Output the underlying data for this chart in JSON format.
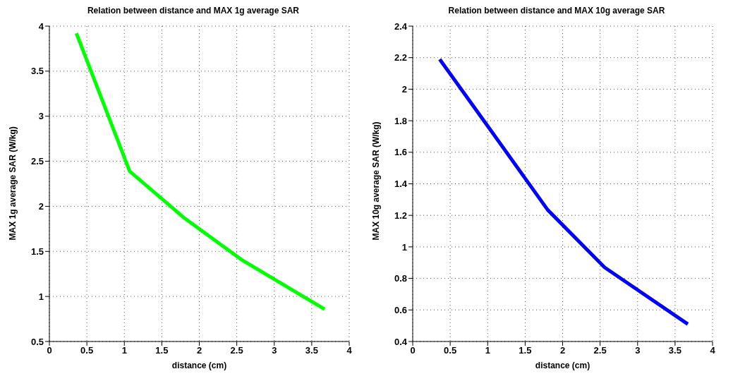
{
  "chart_data": [
    {
      "type": "line",
      "title": "Relation between distance and MAX 1g average SAR",
      "xlabel": "distance (cm)",
      "ylabel": "MAX 1g average SAR (W/kg)",
      "x": [
        0.36,
        1.07,
        1.8,
        2.56,
        3.67
      ],
      "series": [
        {
          "color": "#00ff00",
          "values": [
            3.92,
            2.39,
            1.87,
            1.41,
            0.86
          ]
        }
      ],
      "xlim": [
        0,
        4
      ],
      "ylim": [
        0.5,
        4
      ],
      "xticks": [
        0,
        0.5,
        1,
        1.5,
        2,
        2.5,
        3,
        3.5,
        4
      ],
      "yticks": [
        0.5,
        1,
        1.5,
        2,
        2.5,
        3,
        3.5,
        4
      ],
      "grid": true
    },
    {
      "type": "line",
      "title": "Relation between distance and MAX 10g average SAR",
      "xlabel": "distance (cm)",
      "ylabel": "MAX 10g average SAR (W/kg)",
      "x": [
        0.36,
        1.07,
        1.8,
        2.56,
        3.67
      ],
      "series": [
        {
          "color": "#0000ff",
          "values": [
            2.19,
            1.72,
            1.235,
            0.87,
            0.51
          ]
        }
      ],
      "xlim": [
        0,
        4
      ],
      "ylim": [
        0.4,
        2.4
      ],
      "xticks": [
        0,
        0.5,
        1,
        1.5,
        2,
        2.5,
        3,
        3.5,
        4
      ],
      "yticks": [
        0.4,
        0.6,
        0.8,
        1,
        1.2,
        1.4,
        1.6,
        1.8,
        2,
        2.2,
        2.4
      ],
      "grid": true
    }
  ]
}
